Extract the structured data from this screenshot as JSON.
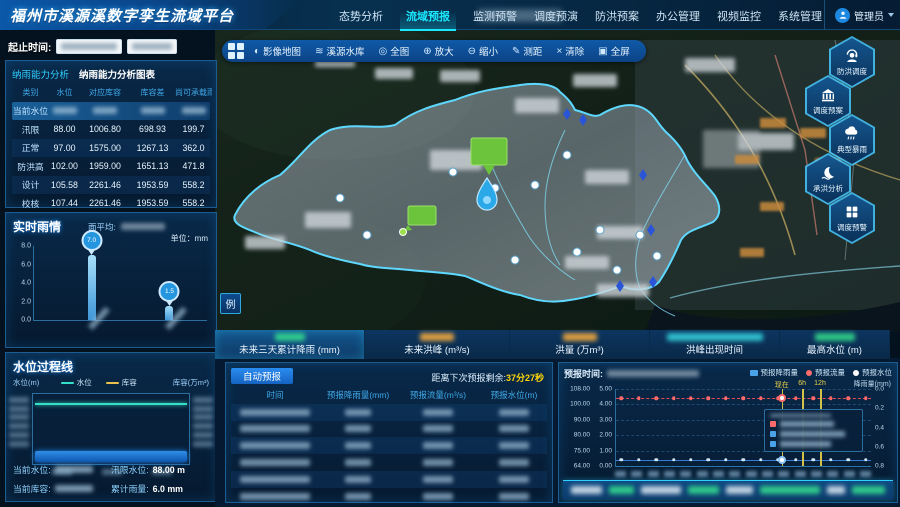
{
  "header": {
    "title": "福州市溪源溪数字孪生流域平台",
    "nav_items": [
      "态势分析",
      "流域预报",
      "监测预警",
      "调度预演",
      "防洪预案",
      "办公管理",
      "视频监控",
      "系统管理"
    ],
    "active_index": 1,
    "user_label": "管理员"
  },
  "time_range": {
    "label": "起止时间:"
  },
  "capacity_panel": {
    "tab_analysis": "纳雨能力分析",
    "tab_chart": "纳雨能力分析图表",
    "headers": [
      "类别",
      "水位",
      "对应库容",
      "库容差",
      "尚可承载雨量"
    ],
    "current_row_label": "当前水位",
    "rows": [
      [
        "汛限",
        "88.00",
        "1006.80",
        "698.93",
        "199.7"
      ],
      [
        "正常",
        "97.00",
        "1575.00",
        "1267.13",
        "362.0"
      ],
      [
        "防洪高",
        "102.00",
        "1959.00",
        "1651.13",
        "471.8"
      ],
      [
        "设计",
        "105.58",
        "2261.46",
        "1953.59",
        "558.2"
      ],
      [
        "校核",
        "107.44",
        "2261.46",
        "1953.59",
        "558.2"
      ]
    ]
  },
  "rain_panel": {
    "title": "实时雨情",
    "avg_label": "面平均:",
    "unit": "单位：mm",
    "chart_data": {
      "type": "bar",
      "values": [
        7.0,
        1.5
      ],
      "labels": [
        "7.0",
        "1.5"
      ],
      "yticks": [
        "8.0",
        "6.0",
        "4.0",
        "2.0",
        "0.0"
      ],
      "ylim": [
        0,
        8
      ],
      "ylabel": "mm"
    }
  },
  "level_panel": {
    "title": "水位过程线",
    "axis_left": "水位(m)",
    "axis_right": "库容(万m³)",
    "legend": [
      {
        "label": "水位",
        "color": "#35e0c8"
      },
      {
        "label": "库容",
        "color": "#e8c24a"
      }
    ],
    "stats": [
      {
        "label": "当前水位:",
        "value": "",
        "blurred": true
      },
      {
        "label": "汛限水位:",
        "value": "88.00 m",
        "blurred": false
      },
      {
        "label": "当前库容:",
        "value": "",
        "blurred": true
      },
      {
        "label": "累计雨量:",
        "value": "6.0 mm",
        "blurred": false
      }
    ]
  },
  "map": {
    "toolbar": [
      {
        "label": "影像地图",
        "icon": "globe-icon"
      },
      {
        "label": "溪源水库",
        "icon": "reservoir-icon"
      },
      {
        "label": "全图",
        "icon": "full-map-icon"
      },
      {
        "label": "放大",
        "icon": "zoom-in-icon"
      },
      {
        "label": "缩小",
        "icon": "zoom-out-icon"
      },
      {
        "label": "测距",
        "icon": "measure-icon"
      },
      {
        "label": "清除",
        "icon": "clear-icon"
      },
      {
        "label": "全屏",
        "icon": "fullscreen-icon"
      }
    ],
    "legend_button": "例",
    "hex_buttons": [
      {
        "label": "防洪调度",
        "icon": "dispatch"
      },
      {
        "label": "调度预案",
        "icon": "plan"
      },
      {
        "label": "典型暴雨",
        "icon": "storm"
      },
      {
        "label": "承洪分析",
        "icon": "flood"
      },
      {
        "label": "调度预警",
        "icon": "warning"
      }
    ]
  },
  "forecast_tabs": {
    "active_index": 0,
    "tabs": [
      {
        "label": "未来三天累计降雨 (mm)",
        "value_color": "#35e08f",
        "value_width": 30
      },
      {
        "label": "未来洪峰 (m³/s)",
        "value_color": "#ffb13d",
        "value_width": 34
      },
      {
        "label": "洪量 (万m³)",
        "value_color": "#ffb13d",
        "value_width": 34
      },
      {
        "label": "洪峰出现时间",
        "value_color": "#35d6e0",
        "value_width": 96
      },
      {
        "label": "最高水位 (m)",
        "value_color": "#35e08f",
        "value_width": 40
      }
    ]
  },
  "auto_forecast": {
    "button_label": "自动预报",
    "countdown_label": "距离下次预报剩余:",
    "countdown_value": "37分27秒",
    "headers": [
      "时间",
      "预报降雨量(mm)",
      "预报流量(m³/s)",
      "预报水位(m)"
    ],
    "row_count": 6
  },
  "forecast_chart": {
    "time_label": "预报时间:",
    "rain_axis_label": "降雨量(mm)",
    "legend": [
      {
        "label": "预报降雨量",
        "color": "#4aa3e8",
        "shape": "square"
      },
      {
        "label": "预报流量",
        "color": "#ff6b6b",
        "shape": "dot"
      },
      {
        "label": "预报水位",
        "color": "#ffffff",
        "shape": "dot"
      }
    ],
    "chart_data": {
      "type": "line",
      "left_axis_level_ticks": [
        "108.00",
        "100.00",
        "90.00",
        "80.00",
        "75.00",
        "64.00"
      ],
      "left_axis_flow_ticks": [
        "5.00",
        "4.00",
        "3.00",
        "2.00",
        "1.00",
        "0.00"
      ],
      "right_axis_rain_ticks": [
        "0.0",
        "0.2",
        "0.4",
        "0.6",
        "0.8"
      ],
      "flow_line_value": 4.4,
      "flow_axis_max": 5,
      "level_line_frac": 0.92,
      "time_markers": [
        {
          "label": "现在",
          "pos": 0.65
        },
        {
          "label": "6h",
          "pos": 0.73
        },
        {
          "label": "12h",
          "pos": 0.8
        }
      ]
    }
  }
}
